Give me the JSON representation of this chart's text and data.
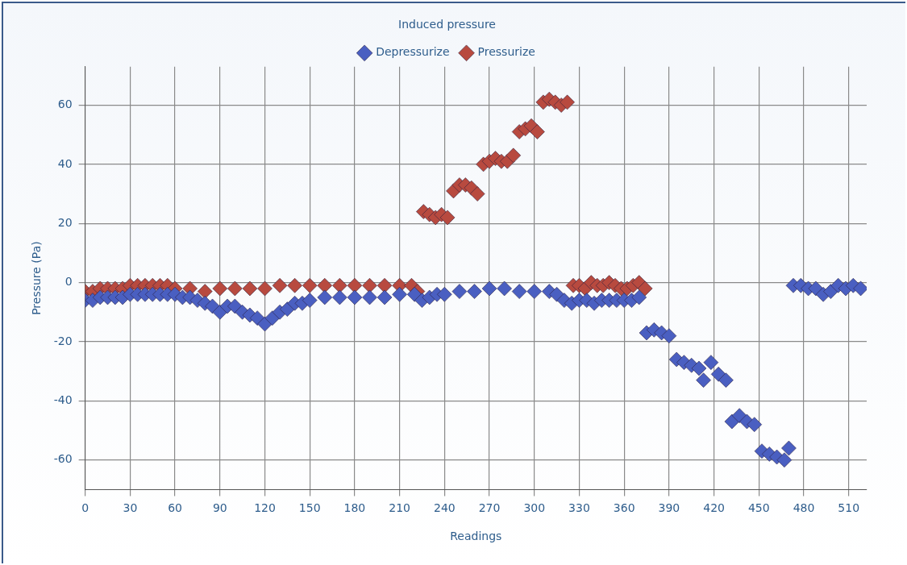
{
  "chart_data": {
    "type": "scatter",
    "legend_title": "Induced pressure",
    "legend": "top",
    "xlabel": "Readings",
    "ylabel": "Pressure (Pa)",
    "marker": "diamond",
    "grid": true,
    "xlim": [
      0,
      522
    ],
    "xticks": [
      0,
      30,
      60,
      90,
      120,
      150,
      180,
      210,
      240,
      270,
      300,
      330,
      360,
      390,
      420,
      450,
      480,
      510
    ],
    "ylim": [
      -70,
      73
    ],
    "yticks": [
      -60,
      -40,
      -20,
      0,
      20,
      40,
      60
    ],
    "series": [
      {
        "name": "Depressurize",
        "color": "#4a5fc1",
        "x": [
          0,
          5,
          10,
          15,
          20,
          25,
          30,
          35,
          40,
          45,
          50,
          55,
          60,
          65,
          70,
          75,
          80,
          85,
          90,
          95,
          100,
          105,
          110,
          115,
          120,
          125,
          130,
          135,
          140,
          145,
          150,
          160,
          170,
          180,
          190,
          200,
          210,
          220,
          225,
          230,
          235,
          240,
          250,
          260,
          270,
          280,
          290,
          300,
          310,
          315,
          320,
          325,
          330,
          335,
          340,
          345,
          350,
          355,
          360,
          365,
          370,
          375,
          380,
          385,
          390,
          395,
          400,
          405,
          410,
          413,
          418,
          423,
          428,
          432,
          437,
          442,
          447,
          452,
          457,
          462,
          467,
          470,
          473,
          478,
          483,
          488,
          493,
          498,
          503,
          508,
          513,
          518
        ],
        "values": [
          -6,
          -6,
          -5,
          -5,
          -5,
          -5,
          -4,
          -4,
          -4,
          -4,
          -4,
          -4,
          -4,
          -5,
          -5,
          -6,
          -7,
          -8,
          -10,
          -8,
          -8,
          -10,
          -11,
          -12,
          -14,
          -12,
          -10,
          -9,
          -7,
          -7,
          -6,
          -5,
          -5,
          -5,
          -5,
          -5,
          -4,
          -4,
          -6,
          -5,
          -4,
          -4,
          -3,
          -3,
          -2,
          -2,
          -3,
          -3,
          -3,
          -4,
          -6,
          -7,
          -6,
          -6,
          -7,
          -6,
          -6,
          -6,
          -6,
          -6,
          -5,
          -17,
          -16,
          -17,
          -18,
          -26,
          -27,
          -28,
          -29,
          -33,
          -27,
          -31,
          -33,
          -47,
          -45,
          -47,
          -48,
          -57,
          -58,
          -59,
          -60,
          -56,
          -1,
          -1,
          -2,
          -2,
          -4,
          -3,
          -1,
          -2,
          -1,
          -2
        ]
      },
      {
        "name": "Pressurize",
        "color": "#b84a3f",
        "x": [
          0,
          5,
          10,
          15,
          20,
          25,
          30,
          35,
          40,
          45,
          50,
          55,
          60,
          70,
          80,
          90,
          100,
          110,
          120,
          130,
          140,
          150,
          160,
          170,
          180,
          190,
          200,
          210,
          218,
          222,
          226,
          230,
          234,
          238,
          242,
          246,
          250,
          254,
          258,
          262,
          266,
          270,
          274,
          278,
          282,
          286,
          290,
          294,
          298,
          302,
          306,
          310,
          314,
          318,
          322,
          326,
          330,
          334,
          338,
          342,
          346,
          350,
          354,
          358,
          362,
          366,
          370,
          374
        ],
        "values": [
          -3,
          -3,
          -2,
          -2,
          -2,
          -2,
          -1,
          -1,
          -1,
          -1,
          -1,
          -1,
          -2,
          -2,
          -3,
          -2,
          -2,
          -2,
          -2,
          -1,
          -1,
          -1,
          -1,
          -1,
          -1,
          -1,
          -1,
          -1,
          -1,
          -3,
          24,
          23,
          22,
          23,
          22,
          31,
          33,
          33,
          32,
          30,
          40,
          41,
          42,
          41,
          41,
          43,
          51,
          52,
          53,
          51,
          61,
          62,
          61,
          60,
          61,
          -1,
          -1,
          -2,
          0,
          -1,
          -1,
          0,
          -1,
          -2,
          -2,
          -1,
          0,
          -2
        ]
      }
    ]
  }
}
